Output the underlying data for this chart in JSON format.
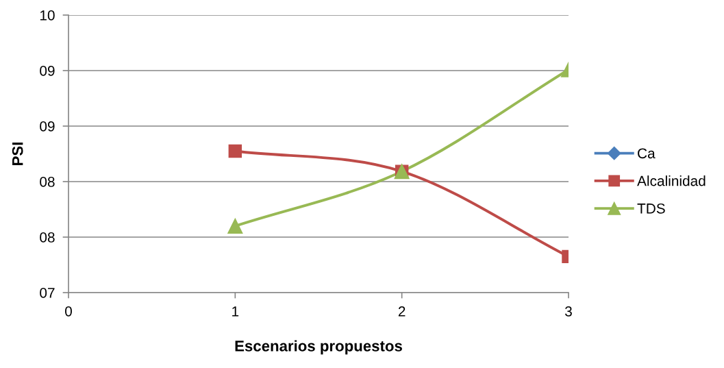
{
  "chart_data": {
    "type": "line",
    "xlabel": "Escenarios propuestos",
    "ylabel": "PSI",
    "x": [
      1,
      2,
      3
    ],
    "series": [
      {
        "name": "Ca",
        "color": "#4a7ebb",
        "marker": "diamond",
        "values": [
          null,
          null,
          null
        ]
      },
      {
        "name": "Alcalinidad",
        "color": "#be4b48",
        "marker": "square",
        "values": [
          8.53,
          8.31,
          7.39
        ]
      },
      {
        "name": "TDS",
        "color": "#98b954",
        "marker": "triangle",
        "values": [
          7.72,
          8.31,
          9.41
        ]
      }
    ],
    "xlim": [
      0,
      3
    ],
    "xticks": [
      0,
      1,
      2,
      3
    ],
    "ylim": [
      7,
      10
    ],
    "yticks": [
      {
        "value": 7,
        "label": "07"
      },
      {
        "value": 7.6,
        "label": "08"
      },
      {
        "value": 8.2,
        "label": "08"
      },
      {
        "value": 8.8,
        "label": "09"
      },
      {
        "value": 9.4,
        "label": "09"
      },
      {
        "value": 10,
        "label": "10"
      }
    ],
    "grid": "y",
    "legend": "right",
    "line_style": "solid"
  }
}
